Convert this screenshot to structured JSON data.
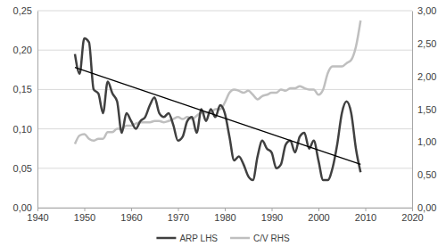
{
  "chart_data": {
    "type": "line",
    "x": [
      1948,
      1949,
      1950,
      1951,
      1952,
      1953,
      1954,
      1955,
      1956,
      1957,
      1958,
      1959,
      1960,
      1961,
      1962,
      1963,
      1964,
      1965,
      1966,
      1967,
      1968,
      1969,
      1970,
      1971,
      1972,
      1973,
      1974,
      1975,
      1976,
      1977,
      1978,
      1979,
      1980,
      1981,
      1982,
      1983,
      1984,
      1985,
      1986,
      1987,
      1988,
      1989,
      1990,
      1991,
      1992,
      1993,
      1994,
      1995,
      1996,
      1997,
      1998,
      1999,
      2000,
      2001,
      2002,
      2003,
      2004,
      2005,
      2006,
      2007,
      2008,
      2009
    ],
    "series": [
      {
        "name": "ARP LHS",
        "color": "#404040",
        "values": [
          0.195,
          0.17,
          0.215,
          0.21,
          0.15,
          0.145,
          0.12,
          0.16,
          0.145,
          0.135,
          0.095,
          0.12,
          0.11,
          0.1,
          0.11,
          0.115,
          0.13,
          0.14,
          0.12,
          0.115,
          0.12,
          0.105,
          0.085,
          0.09,
          0.11,
          0.115,
          0.095,
          0.125,
          0.11,
          0.125,
          0.115,
          0.13,
          0.12,
          0.09,
          0.06,
          0.065,
          0.055,
          0.04,
          0.035,
          0.065,
          0.085,
          0.075,
          0.07,
          0.05,
          0.055,
          0.08,
          0.085,
          0.07,
          0.09,
          0.095,
          0.075,
          0.085,
          0.06,
          0.035,
          0.035,
          0.05,
          0.08,
          0.12,
          0.135,
          0.12,
          0.075,
          0.045
        ]
      },
      {
        "name": "C/V RHS",
        "color": "#bfbfbf",
        "axis": "y2",
        "values": [
          0.97,
          1.1,
          1.12,
          1.05,
          1.02,
          1.05,
          1.05,
          1.15,
          1.15,
          1.2,
          1.2,
          1.25,
          1.25,
          1.28,
          1.3,
          1.3,
          1.3,
          1.32,
          1.32,
          1.3,
          1.32,
          1.35,
          1.38,
          1.35,
          1.38,
          1.35,
          1.4,
          1.45,
          1.45,
          1.45,
          1.5,
          1.5,
          1.6,
          1.75,
          1.8,
          1.78,
          1.75,
          1.78,
          1.72,
          1.65,
          1.7,
          1.72,
          1.75,
          1.75,
          1.8,
          1.78,
          1.82,
          1.82,
          1.85,
          1.82,
          1.8,
          1.8,
          1.72,
          1.8,
          2.05,
          2.15,
          2.15,
          2.15,
          2.2,
          2.25,
          2.45,
          2.85
        ]
      },
      {
        "color": "#000000",
        "x": [
          1948,
          2009
        ],
        "values": [
          0.178,
          0.055
        ]
      }
    ],
    "xlim": [
      1940,
      2020
    ],
    "xticks": [
      1940,
      1950,
      1960,
      1970,
      1980,
      1990,
      2000,
      2010,
      2020
    ],
    "ylim": [
      0,
      0.25
    ],
    "yticks": [
      {
        "value": 0,
        "label": "0,00"
      },
      {
        "value": 0.05,
        "label": "0,05"
      },
      {
        "value": 0.1,
        "label": "0,10"
      },
      {
        "value": 0.15,
        "label": "0,15"
      },
      {
        "value": 0.2,
        "label": "0,20"
      },
      {
        "value": 0.25,
        "label": "0,25"
      }
    ],
    "y2lim": [
      0,
      3
    ],
    "y2ticks": [
      {
        "value": 0,
        "label": "0,00"
      },
      {
        "value": 0.5,
        "label": "0,50"
      },
      {
        "value": 1,
        "label": "1,00"
      },
      {
        "value": 1.5,
        "label": "1,50"
      },
      {
        "value": 2,
        "label": "2,00"
      },
      {
        "value": 2.5,
        "label": "2,50"
      },
      {
        "value": 3,
        "label": "3,00"
      }
    ],
    "grid": true,
    "legend": "bottom"
  }
}
